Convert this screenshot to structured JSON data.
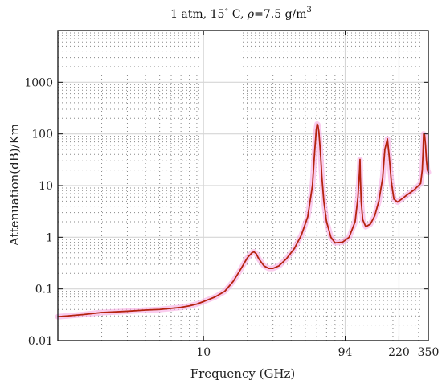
{
  "chart_data": {
    "type": "line",
    "title_main": "1 atm, 15",
    "title_deg": "∘",
    "title_tail_1": " C, ",
    "title_rho": "ρ",
    "title_tail_2": "=7.5 g/m",
    "title_exp": "3",
    "xlabel": "Frequency (GHz)",
    "ylabel": "Attenuation(dB)/Km",
    "x_scale": "log",
    "y_scale": "log",
    "xlim": [
      1,
      350
    ],
    "ylim": [
      0.01,
      10000
    ],
    "x_ticks": [
      {
        "value": 10,
        "label": "10"
      },
      {
        "value": 94,
        "label": "94"
      },
      {
        "value": 220,
        "label": "220"
      },
      {
        "value": 350,
        "label": "350"
      }
    ],
    "y_ticks": [
      {
        "value": 0.01,
        "label": "0.01"
      },
      {
        "value": 0.1,
        "label": "0.1"
      },
      {
        "value": 1,
        "label": "1"
      },
      {
        "value": 10,
        "label": "10"
      },
      {
        "value": 100,
        "label": "100"
      },
      {
        "value": 1000,
        "label": "1000"
      }
    ],
    "grid": true,
    "line_color": "#b5230f",
    "band_color": "#f5a3e0",
    "series": [
      {
        "points": [
          [
            1.0,
            0.029
          ],
          [
            1.5,
            0.032
          ],
          [
            2.0,
            0.035
          ],
          [
            3.0,
            0.037
          ],
          [
            4.0,
            0.039
          ],
          [
            5.0,
            0.04
          ],
          [
            6.0,
            0.042
          ],
          [
            7.0,
            0.044
          ],
          [
            8.0,
            0.047
          ],
          [
            9.0,
            0.051
          ],
          [
            10.0,
            0.057
          ],
          [
            12.0,
            0.07
          ],
          [
            14.0,
            0.09
          ],
          [
            16.0,
            0.14
          ],
          [
            18.0,
            0.24
          ],
          [
            20.0,
            0.4
          ],
          [
            21.5,
            0.5
          ],
          [
            22.2,
            0.52
          ],
          [
            23.0,
            0.48
          ],
          [
            24.0,
            0.38
          ],
          [
            26.0,
            0.28
          ],
          [
            28.0,
            0.25
          ],
          [
            30.0,
            0.25
          ],
          [
            33.0,
            0.28
          ],
          [
            37.0,
            0.38
          ],
          [
            42.0,
            0.6
          ],
          [
            47.0,
            1.1
          ],
          [
            52.0,
            2.5
          ],
          [
            56.0,
            10
          ],
          [
            58.0,
            45
          ],
          [
            59.5,
            120
          ],
          [
            60.3,
            155
          ],
          [
            61.0,
            150
          ],
          [
            62.0,
            110
          ],
          [
            63.5,
            45
          ],
          [
            65.0,
            15
          ],
          [
            67.0,
            5
          ],
          [
            70.0,
            2
          ],
          [
            75.0,
            1.0
          ],
          [
            80.0,
            0.78
          ],
          [
            90.0,
            0.8
          ],
          [
            100.0,
            1.0
          ],
          [
            110.0,
            2.0
          ],
          [
            115.0,
            6
          ],
          [
            118.0,
            20
          ],
          [
            118.8,
            32
          ],
          [
            119.5,
            15
          ],
          [
            121.0,
            5
          ],
          [
            124.0,
            2.2
          ],
          [
            130.0,
            1.6
          ],
          [
            140.0,
            1.8
          ],
          [
            150.0,
            2.6
          ],
          [
            160.0,
            5
          ],
          [
            170.0,
            14
          ],
          [
            176.0,
            50
          ],
          [
            183.3,
            80
          ],
          [
            188.0,
            40
          ],
          [
            195.0,
            12
          ],
          [
            203.0,
            5.5
          ],
          [
            215.0,
            4.8
          ],
          [
            230.0,
            5.5
          ],
          [
            250.0,
            6.6
          ],
          [
            280.0,
            8.3
          ],
          [
            310.0,
            11
          ],
          [
            318.0,
            20
          ],
          [
            322.0,
            45
          ],
          [
            325.0,
            100
          ],
          [
            330.0,
            95
          ],
          [
            335.0,
            60
          ],
          [
            340.0,
            30
          ],
          [
            345.0,
            20
          ],
          [
            350.0,
            18
          ]
        ]
      }
    ]
  }
}
